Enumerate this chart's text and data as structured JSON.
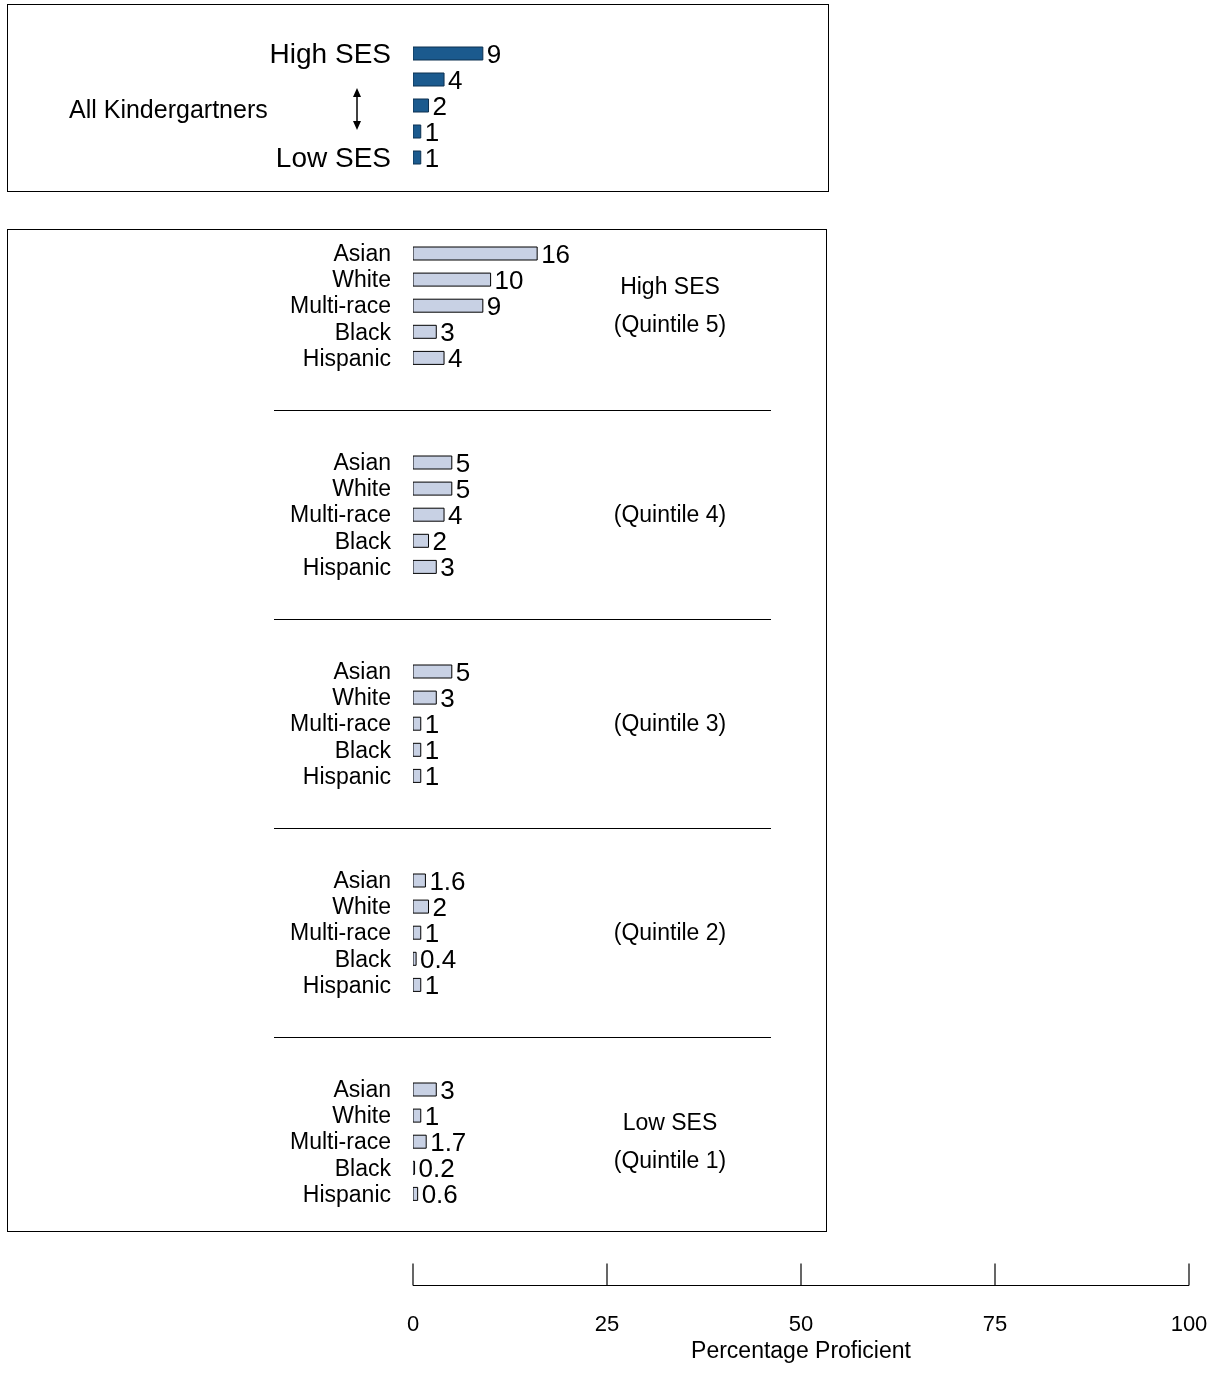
{
  "chart_data": [
    {
      "type": "bar",
      "orientation": "horizontal",
      "categories": [
        "High SES",
        null,
        null,
        null,
        "Low SES"
      ],
      "values": [
        9,
        4,
        2,
        1,
        1
      ],
      "color": "#1b5a8e",
      "xlim": [
        0,
        100
      ],
      "xticks": [
        0,
        25,
        50,
        75,
        100
      ],
      "data_labels": true,
      "tick_labels": "y",
      "annotations": [
        "All Kindergartners"
      ]
    },
    {
      "type": "bar",
      "orientation": "horizontal",
      "categories": [
        "Asian",
        "White",
        "Multi-race",
        "Black",
        "Hispanic"
      ],
      "values": [
        16,
        10,
        9,
        3,
        4
      ],
      "color": "#c8d1e4",
      "xlim": [
        0,
        100
      ],
      "xticks": [
        0,
        25,
        50,
        75,
        100
      ],
      "data_labels": true,
      "tick_labels": "y",
      "annotations": [
        "High SES (Quintile 5)"
      ]
    },
    {
      "type": "bar",
      "orientation": "horizontal",
      "categories": [
        "Asian",
        "White",
        "Multi-race",
        "Black",
        "Hispanic"
      ],
      "values": [
        5,
        5,
        4,
        2,
        3
      ],
      "color": "#c8d1e4",
      "xlim": [
        0,
        100
      ],
      "xticks": [
        0,
        25,
        50,
        75,
        100
      ],
      "data_labels": true,
      "tick_labels": "y",
      "annotations": [
        "(Quintile 4)"
      ]
    },
    {
      "type": "bar",
      "orientation": "horizontal",
      "categories": [
        "Asian",
        "White",
        "Multi-race",
        "Black",
        "Hispanic"
      ],
      "values": [
        5,
        3,
        1,
        1,
        1
      ],
      "color": "#c8d1e4",
      "xlim": [
        0,
        100
      ],
      "xticks": [
        0,
        25,
        50,
        75,
        100
      ],
      "data_labels": true,
      "tick_labels": "y",
      "annotations": [
        "(Quintile 3)"
      ]
    },
    {
      "type": "bar",
      "orientation": "horizontal",
      "categories": [
        "Asian",
        "White",
        "Multi-race",
        "Black",
        "Hispanic"
      ],
      "values": [
        1.6,
        2,
        1,
        0.4,
        1
      ],
      "color": "#c8d1e4",
      "xlim": [
        0,
        100
      ],
      "xticks": [
        0,
        25,
        50,
        75,
        100
      ],
      "data_labels": true,
      "tick_labels": "y",
      "annotations": [
        "(Quintile 2)"
      ]
    },
    {
      "type": "bar",
      "orientation": "horizontal",
      "categories": [
        "Asian",
        "White",
        "Multi-race",
        "Black",
        "Hispanic"
      ],
      "values": [
        3,
        1,
        1.7,
        0.2,
        0.6
      ],
      "color": "#c8d1e4",
      "xlim": [
        0,
        100
      ],
      "xticks": [
        0,
        25,
        50,
        75,
        100
      ],
      "xlabel": "Percentage Proficient",
      "data_labels": true,
      "annotations": [
        "Low SES (Quintile 1)"
      ]
    }
  ]
}
